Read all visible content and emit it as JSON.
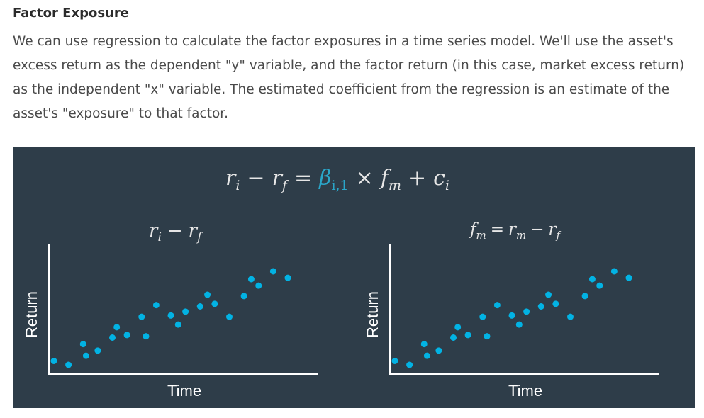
{
  "heading": "Factor Exposure",
  "paragraph_lines": [
    "We can use regression to calculate the factor exposures in a time series model. We'll use the asset's",
    "excess return as the dependent \"y\" variable, and the factor return (in this case, market excess return)",
    "as the independent \"x\" variable. The estimated coefficient from the regression is an estimate of the",
    "asset's \"exposure\" to that factor."
  ],
  "figure": {
    "colors": {
      "background": "#2e3d49",
      "dots": "#02b3e4",
      "axes": "#ffffff",
      "beta": "#2aa6c9"
    },
    "equation": {
      "r": "r",
      "i": "i",
      "minus": "−",
      "f": "f",
      "equals": "=",
      "beta": "β",
      "beta_sub": "i,1",
      "times": "×",
      "fm": "f",
      "m": "m",
      "plus": "+",
      "c": "c"
    },
    "left_panel": {
      "title": {
        "r": "r",
        "i": "i",
        "minus": "−",
        "f": "f"
      },
      "xlabel": "Time",
      "ylabel": "Return"
    },
    "right_panel": {
      "title": {
        "fm": "f",
        "m": "m",
        "eq": "=",
        "r": "r",
        "rm_sub": "m",
        "minus": "−",
        "r2": "r",
        "f": "f"
      },
      "xlabel": "Time",
      "ylabel": "Return"
    }
  },
  "chart_data": [
    {
      "type": "scatter",
      "title": "",
      "xlabel": "Time",
      "ylabel": "Return",
      "points": [
        [
          1,
          1.0
        ],
        [
          2,
          0.7
        ],
        [
          3,
          2.3
        ],
        [
          3.2,
          1.4
        ],
        [
          4,
          1.8
        ],
        [
          5,
          2.8
        ],
        [
          5.3,
          3.6
        ],
        [
          6,
          3.0
        ],
        [
          7,
          4.4
        ],
        [
          7.3,
          2.9
        ],
        [
          8,
          5.3
        ],
        [
          9,
          4.5
        ],
        [
          9.5,
          3.8
        ],
        [
          10,
          4.8
        ],
        [
          11,
          5.2
        ],
        [
          11.5,
          6.1
        ],
        [
          12,
          5.4
        ],
        [
          13,
          4.4
        ],
        [
          14,
          6.0
        ],
        [
          14.5,
          7.3
        ],
        [
          15,
          6.8
        ],
        [
          16,
          7.9
        ],
        [
          17,
          7.4
        ]
      ]
    },
    {
      "type": "scatter",
      "title": "",
      "xlabel": "Time",
      "ylabel": "Return",
      "points": [
        [
          1,
          1.0
        ],
        [
          2,
          0.7
        ],
        [
          3,
          2.3
        ],
        [
          3.2,
          1.4
        ],
        [
          4,
          1.8
        ],
        [
          5,
          2.8
        ],
        [
          5.3,
          3.6
        ],
        [
          6,
          3.0
        ],
        [
          7,
          4.4
        ],
        [
          7.3,
          2.9
        ],
        [
          8,
          5.3
        ],
        [
          9,
          4.5
        ],
        [
          9.5,
          3.8
        ],
        [
          10,
          4.8
        ],
        [
          11,
          5.2
        ],
        [
          11.5,
          6.1
        ],
        [
          12,
          5.4
        ],
        [
          13,
          4.4
        ],
        [
          14,
          6.0
        ],
        [
          14.5,
          7.3
        ],
        [
          15,
          6.8
        ],
        [
          16,
          7.9
        ],
        [
          17,
          7.4
        ]
      ]
    }
  ]
}
